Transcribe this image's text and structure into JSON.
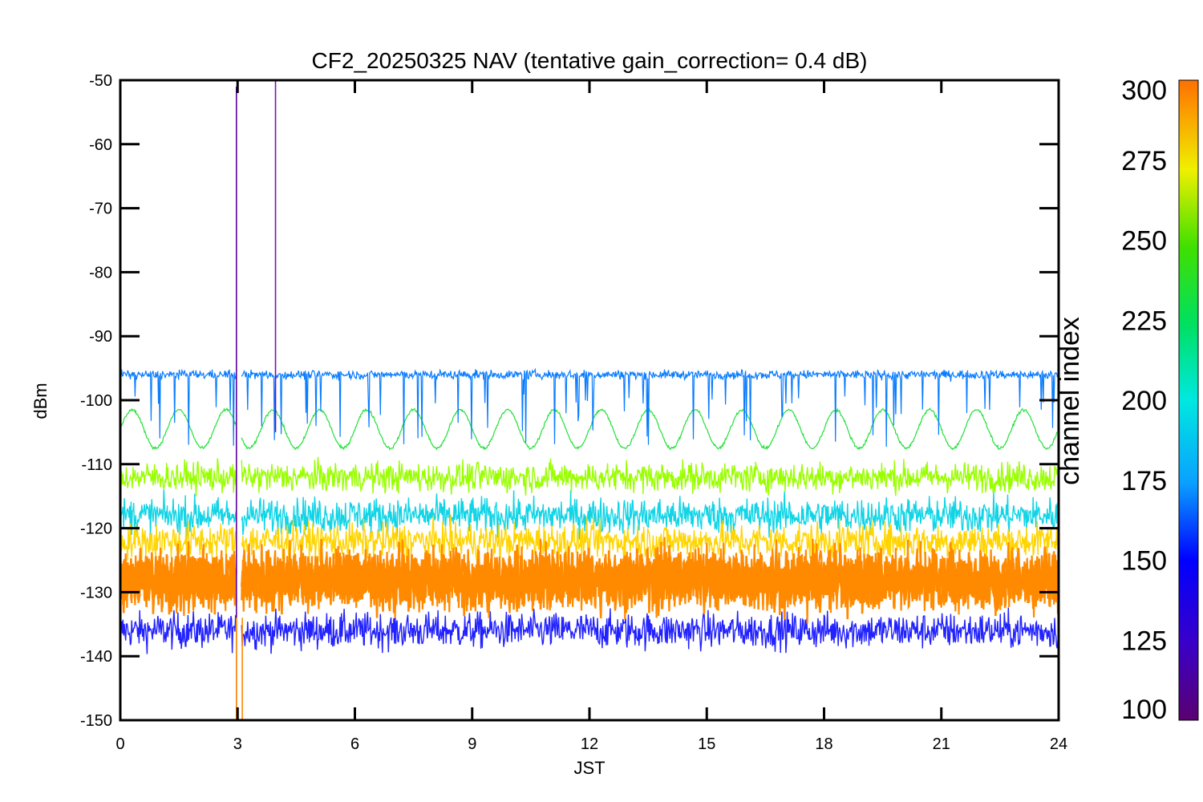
{
  "chart_data": {
    "type": "line",
    "title": "CF2_20250325 NAV (tentative gain_correction=  0.4 dB)",
    "xlabel": "JST",
    "ylabel": "dBm",
    "xlim": [
      0,
      24
    ],
    "ylim": [
      -150,
      -50
    ],
    "xticks": [
      0,
      3,
      6,
      9,
      12,
      15,
      18,
      21,
      24
    ],
    "yticks": [
      -50,
      -60,
      -70,
      -80,
      -90,
      -100,
      -110,
      -120,
      -130,
      -140,
      -150
    ],
    "colorbar": {
      "title": "channel index",
      "range": [
        100,
        300
      ],
      "ticks": [
        300,
        275,
        250,
        225,
        200,
        175,
        150,
        125,
        100
      ],
      "colormap": "rainbow"
    },
    "series": [
      {
        "color": "#0a7cff",
        "channel": 150,
        "mean": -96,
        "noise": 1.2,
        "style": "noisy-upper",
        "values_note": "approx -96 with downward spikes to -105"
      },
      {
        "color": "#22e03a",
        "channel": 245,
        "mean": -104.5,
        "amplitude": 3,
        "period_hours": 1.2,
        "style": "sinusoid"
      },
      {
        "color": "#99ff00",
        "channel": 260,
        "mean": -112,
        "noise": 2.5,
        "style": "band"
      },
      {
        "color": "#11d4e6",
        "channel": 175,
        "mean": -118,
        "noise": 3,
        "style": "band"
      },
      {
        "color": "#ffd400",
        "channel": 280,
        "mean": -122,
        "noise": 3,
        "style": "band"
      },
      {
        "color": "#ff8a00",
        "channel": 300,
        "mean": -128,
        "noise": 5,
        "style": "band"
      },
      {
        "color": "#2222ff",
        "channel": 130,
        "mean": -136,
        "noise": 3,
        "style": "band"
      }
    ],
    "spikes": [
      {
        "x": 2.97,
        "y0": -150,
        "y1": -51,
        "color": "#5b00a0"
      },
      {
        "x": 3.97,
        "y0": -105,
        "y1": -50,
        "color": "#7a10b0"
      },
      {
        "x": 2.97,
        "y0": -150,
        "y1": -134,
        "color": "#ff8a00"
      },
      {
        "x": 3.12,
        "y0": -150,
        "y1": -134,
        "color": "#ff8a00"
      }
    ],
    "gap": {
      "x0": 2.98,
      "x1": 3.1
    }
  }
}
